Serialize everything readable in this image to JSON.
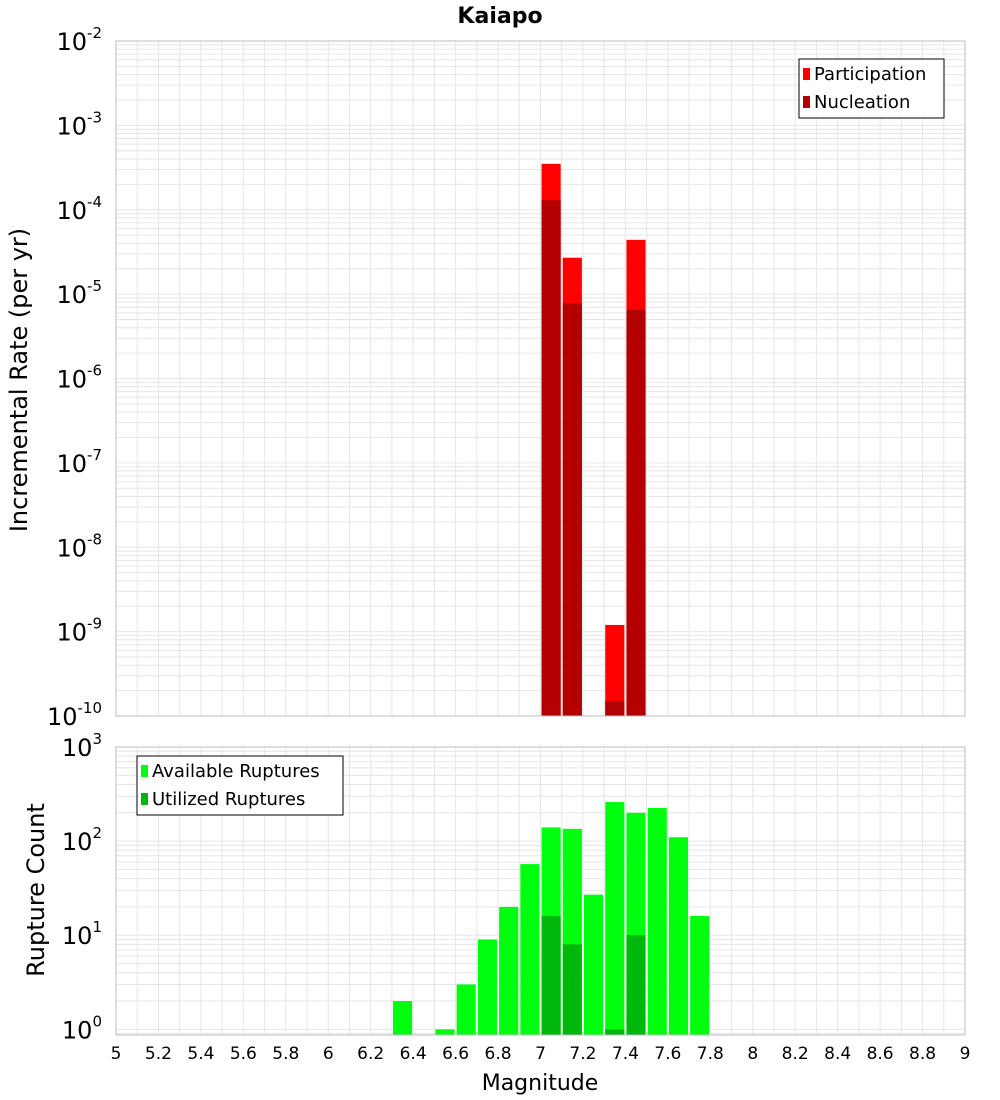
{
  "title": "Kaiapo",
  "x_axis": {
    "label": "Magnitude",
    "range": [
      5,
      9
    ],
    "ticks": [
      "5",
      "5.2",
      "5.4",
      "5.6",
      "5.8",
      "6",
      "6.2",
      "6.4",
      "6.6",
      "6.8",
      "7",
      "7.2",
      "7.4",
      "7.6",
      "7.8",
      "8",
      "8.2",
      "8.4",
      "8.6",
      "8.8",
      "9"
    ]
  },
  "chart_data": [
    {
      "type": "bar",
      "panel": "top",
      "title": "Kaiapo",
      "ylabel": "Incremental Rate (per yr)",
      "xlabel": "Magnitude",
      "yscale": "log",
      "ylim_exp": [
        -10,
        -2
      ],
      "ytick_bases": [
        "10",
        "10",
        "10",
        "10",
        "10",
        "10",
        "10",
        "10",
        "10"
      ],
      "ytick_exps": [
        "-10",
        "-9",
        "-8",
        "-7",
        "-6",
        "-5",
        "-4",
        "-3",
        "-2"
      ],
      "legend_position": "top-right",
      "bar_width": 0.09,
      "series": [
        {
          "name": "Participation",
          "color": "#ff0000",
          "x": [
            7.05,
            7.15,
            7.35,
            7.45
          ],
          "values": [
            0.00035,
            2.7e-05,
            1.2e-09,
            4.4e-05
          ]
        },
        {
          "name": "Nucleation",
          "color": "#b30000",
          "x": [
            7.05,
            7.15,
            7.35,
            7.45
          ],
          "values": [
            0.00013,
            7.8e-06,
            1.5e-10,
            6.5e-06
          ]
        }
      ]
    },
    {
      "type": "bar",
      "panel": "bottom",
      "ylabel": "Rupture Count",
      "xlabel": "Magnitude",
      "yscale": "log",
      "ylim_exp": [
        -0.06,
        3
      ],
      "ytick_bases": [
        "10",
        "10",
        "10",
        "10"
      ],
      "ytick_exps": [
        "0",
        "1",
        "2",
        "3"
      ],
      "legend_position": "top-left",
      "bar_width": 0.09,
      "series": [
        {
          "name": "Available Ruptures",
          "color": "#00ff0f",
          "x": [
            6.35,
            6.55,
            6.65,
            6.75,
            6.85,
            6.95,
            7.05,
            7.15,
            7.25,
            7.35,
            7.45,
            7.55,
            7.65,
            7.75
          ],
          "values": [
            2,
            1,
            3,
            9,
            20,
            57,
            140,
            135,
            27,
            260,
            200,
            225,
            110,
            16
          ]
        },
        {
          "name": "Utilized Ruptures",
          "color": "#00b80b",
          "x": [
            7.05,
            7.15,
            7.35,
            7.45
          ],
          "values": [
            16,
            8,
            1,
            10
          ]
        }
      ]
    }
  ]
}
